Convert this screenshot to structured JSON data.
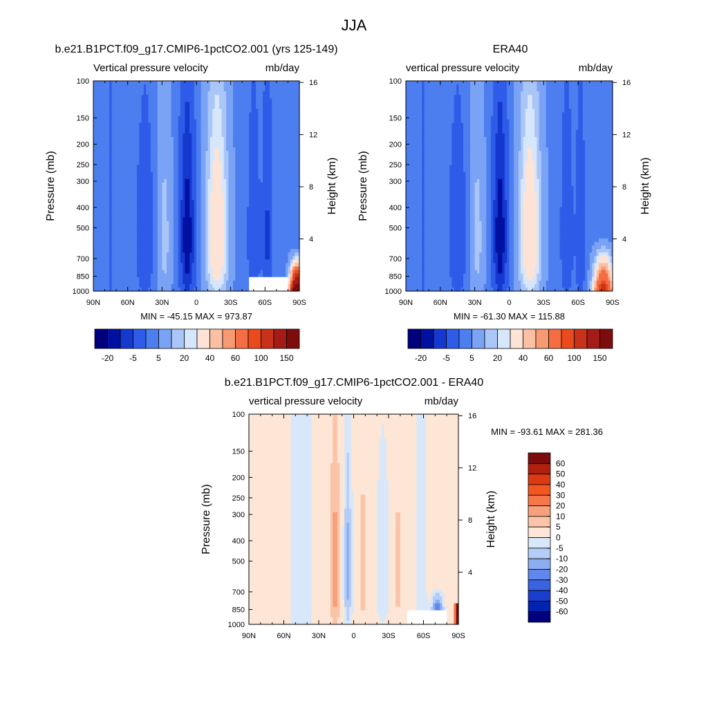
{
  "figure_title": "JJA",
  "chart_data": [
    {
      "type": "heatmap",
      "kind": "latitude-pressure contour",
      "title": "b.e21.B1PCT.f09_g17.CMIP6-1pctCO2.001 (yrs 125-149)",
      "left_string": "Vertical pressure velocity",
      "right_string": "mb/day",
      "xlabel": "",
      "ylabel": "Pressure (mb)",
      "y2label": "Height (km)",
      "x_ticks": [
        "90N",
        "60N",
        "30N",
        "0",
        "30S",
        "60S",
        "90S"
      ],
      "x_range": [
        90,
        -90
      ],
      "y_ticks": [
        100,
        150,
        200,
        250,
        300,
        400,
        500,
        700,
        850,
        1000
      ],
      "y_range": [
        1000,
        100
      ],
      "y2_ticks": [
        4,
        8,
        12,
        16
      ],
      "stats": "MIN = -45.15  MAX = 973.87",
      "colorbar": {
        "orientation": "horizontal",
        "tick_labels": [
          "-20",
          "-5",
          "5",
          "20",
          "40",
          "60",
          "100",
          "150"
        ],
        "colors": [
          "#00007f",
          "#0010a0",
          "#1538cf",
          "#2e5ce8",
          "#4c7ef0",
          "#7aa3f5",
          "#aac6f8",
          "#d6e6fb",
          "#fde3d5",
          "#fbc0a4",
          "#f79a73",
          "#f46d43",
          "#ea4a1c",
          "#c8321a",
          "#a51b17",
          "#7d0d0d"
        ]
      },
      "features": [
        "strong ascent (negative omega) near 5N-10N throughout troposphere",
        "broad descent (positive omega) near 20S-25S",
        "strong positive values near surface 75S-90S"
      ]
    },
    {
      "type": "heatmap",
      "kind": "latitude-pressure contour",
      "title": "ERA40",
      "left_string": "vertical pressure velocity",
      "right_string": "mb/day",
      "xlabel": "",
      "ylabel": "Pressure (mb)",
      "y2label": "Height (km)",
      "x_ticks": [
        "90N",
        "60N",
        "30N",
        "0",
        "30S",
        "60S",
        "90S"
      ],
      "x_range": [
        90,
        -90
      ],
      "y_ticks": [
        100,
        150,
        200,
        250,
        300,
        400,
        500,
        700,
        850,
        1000
      ],
      "y_range": [
        1000,
        100
      ],
      "y2_ticks": [
        4,
        8,
        12,
        16
      ],
      "stats": "MIN = -61.30  MAX = 115.88",
      "colorbar": {
        "orientation": "horizontal",
        "tick_labels": [
          "-20",
          "-5",
          "5",
          "20",
          "40",
          "60",
          "100",
          "150"
        ],
        "colors": [
          "#00007f",
          "#0010a0",
          "#1538cf",
          "#2e5ce8",
          "#4c7ef0",
          "#7aa3f5",
          "#aac6f8",
          "#d6e6fb",
          "#fde3d5",
          "#fbc0a4",
          "#f79a73",
          "#f46d43",
          "#ea4a1c",
          "#c8321a",
          "#a51b17",
          "#7d0d0d"
        ]
      }
    },
    {
      "type": "heatmap",
      "kind": "latitude-pressure contour difference",
      "title": "b.e21.B1PCT.f09_g17.CMIP6-1pctCO2.001 - ERA40",
      "left_string": "vertical pressure velocity",
      "right_string": "mb/day",
      "xlabel": "",
      "ylabel": "Pressure (mb)",
      "y2label": "Height (km)",
      "x_ticks": [
        "90N",
        "60N",
        "30N",
        "0",
        "30S",
        "60S",
        "90S"
      ],
      "x_range": [
        90,
        -90
      ],
      "y_ticks": [
        100,
        150,
        200,
        250,
        300,
        400,
        500,
        700,
        850,
        1000
      ],
      "y_range": [
        1000,
        100
      ],
      "y2_ticks": [
        4,
        8,
        12,
        16
      ],
      "stats": "MIN = -93.61  MAX = 281.36",
      "colorbar": {
        "orientation": "vertical",
        "tick_labels": [
          "60",
          "50",
          "40",
          "30",
          "20",
          "10",
          "5",
          "0",
          "-5",
          "-10",
          "-20",
          "-30",
          "-40",
          "-50",
          "-60"
        ],
        "colors": [
          "#7d0d0d",
          "#b0200f",
          "#db3a12",
          "#f4561f",
          "#f6784a",
          "#f7a07c",
          "#fbc4a8",
          "#fde6d6",
          "#d8e8fa",
          "#b4cdf7",
          "#8cadf2",
          "#5f87ec",
          "#3a63e2",
          "#1a3fcf",
          "#0024b0",
          "#00007f"
        ]
      }
    }
  ]
}
